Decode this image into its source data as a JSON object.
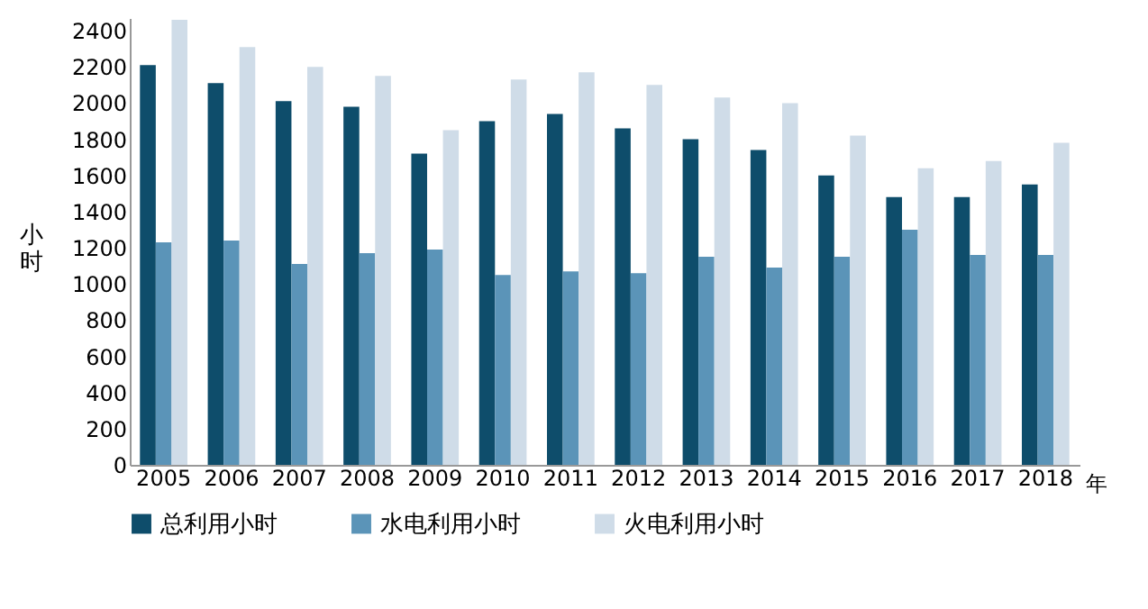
{
  "chart_data": {
    "type": "bar",
    "xlabel": "年",
    "ylabel": "小时",
    "categories": [
      "2005",
      "2006",
      "2007",
      "2008",
      "2009",
      "2010",
      "2011",
      "2012",
      "2013",
      "2014",
      "2015",
      "2016",
      "2017",
      "2018"
    ],
    "series": [
      {
        "name": "总利用小时",
        "color": "#0e4d6b",
        "values": [
          2210,
          2110,
          2010,
          1980,
          1720,
          1900,
          1940,
          1860,
          1800,
          1740,
          1600,
          1480,
          1480,
          1550
        ]
      },
      {
        "name": "水电利用小时",
        "color": "#5b94b8",
        "values": [
          1230,
          1240,
          1110,
          1170,
          1190,
          1050,
          1070,
          1060,
          1150,
          1090,
          1150,
          1300,
          1160,
          1160
        ]
      },
      {
        "name": "火电利用小时",
        "color": "#cfdce8",
        "values": [
          2460,
          2310,
          2200,
          2150,
          1850,
          2130,
          2170,
          2100,
          2030,
          2000,
          1820,
          1640,
          1680,
          1780
        ]
      }
    ],
    "ylim": [
      0,
      2470
    ],
    "yticks": [
      0,
      200,
      400,
      600,
      800,
      1000,
      1200,
      1400,
      1600,
      1800,
      2000,
      2200,
      2400
    ],
    "grid": false,
    "legend": "bottom"
  }
}
